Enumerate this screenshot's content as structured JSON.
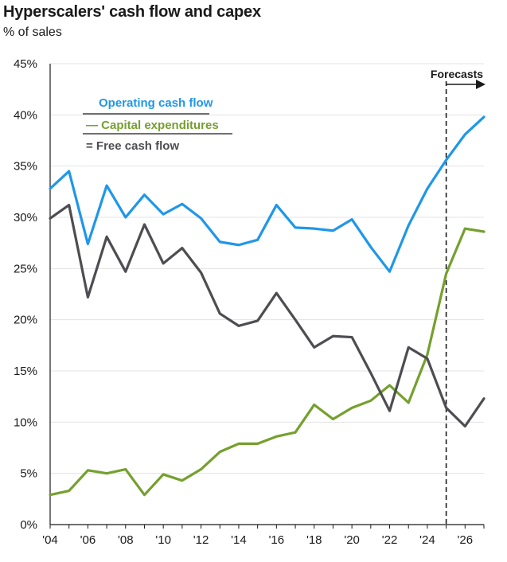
{
  "chart_data": {
    "type": "line",
    "title": "Hyperscalers' cash flow and capex",
    "subtitle": "% of sales",
    "xlabel": "",
    "ylabel": "% of sales",
    "x": [
      2004,
      2005,
      2006,
      2007,
      2008,
      2009,
      2010,
      2011,
      2012,
      2013,
      2014,
      2015,
      2016,
      2017,
      2018,
      2019,
      2020,
      2021,
      2022,
      2023,
      2024,
      2025,
      2026,
      2027
    ],
    "xlim": [
      2004,
      2027
    ],
    "ylim": [
      0,
      45
    ],
    "x_ticks": [
      {
        "value": 2004,
        "label": "'04"
      },
      {
        "value": 2006,
        "label": "'06"
      },
      {
        "value": 2008,
        "label": "'08"
      },
      {
        "value": 2010,
        "label": "'10"
      },
      {
        "value": 2012,
        "label": "'12"
      },
      {
        "value": 2014,
        "label": "'14"
      },
      {
        "value": 2016,
        "label": "'16"
      },
      {
        "value": 2018,
        "label": "'18"
      },
      {
        "value": 2020,
        "label": "'20"
      },
      {
        "value": 2022,
        "label": "'22"
      },
      {
        "value": 2024,
        "label": "'24"
      },
      {
        "value": 2026,
        "label": "'26"
      }
    ],
    "y_ticks": [
      {
        "value": 0,
        "label": "0%"
      },
      {
        "value": 5,
        "label": "5%"
      },
      {
        "value": 10,
        "label": "10%"
      },
      {
        "value": 15,
        "label": "15%"
      },
      {
        "value": 20,
        "label": "20%"
      },
      {
        "value": 25,
        "label": "25%"
      },
      {
        "value": 30,
        "label": "30%"
      },
      {
        "value": 35,
        "label": "35%"
      },
      {
        "value": 40,
        "label": "40%"
      },
      {
        "value": 45,
        "label": "45%"
      }
    ],
    "grid": true,
    "legend_position": "top-left",
    "series": [
      {
        "name": "Operating cash flow",
        "color": "#1f97e8",
        "values": [
          32.8,
          34.5,
          27.4,
          33.1,
          30.0,
          32.2,
          30.3,
          31.3,
          29.9,
          27.6,
          27.3,
          27.8,
          31.2,
          29.0,
          28.9,
          28.7,
          29.8,
          27.1,
          24.7,
          29.2,
          32.8,
          35.6,
          38.1,
          39.8
        ]
      },
      {
        "name": "Capital expenditures",
        "color": "#75a02e",
        "values": [
          2.9,
          3.3,
          5.3,
          5.0,
          5.4,
          2.9,
          4.9,
          4.3,
          5.4,
          7.1,
          7.9,
          7.9,
          8.6,
          9.0,
          11.7,
          10.3,
          11.4,
          12.1,
          13.6,
          11.9,
          16.6,
          24.5,
          28.9,
          28.6
        ]
      },
      {
        "name": "Free cash flow",
        "color": "#4d4d52",
        "values": [
          29.9,
          31.2,
          22.2,
          28.1,
          24.7,
          29.3,
          25.5,
          27.0,
          24.6,
          20.6,
          19.4,
          19.9,
          22.6,
          20.0,
          17.3,
          18.4,
          18.3,
          14.8,
          11.1,
          17.3,
          16.2,
          11.4,
          9.6,
          12.3
        ]
      }
    ],
    "legend": [
      {
        "label": "Operating cash flow",
        "prefix": ""
      },
      {
        "label": "Capital expenditures",
        "prefix": "—"
      },
      {
        "label": "Free cash flow",
        "prefix": "="
      }
    ],
    "annotations": [
      {
        "text": "Forecasts",
        "x": 2025,
        "type": "vertical-dashed-line-with-arrow"
      }
    ]
  }
}
